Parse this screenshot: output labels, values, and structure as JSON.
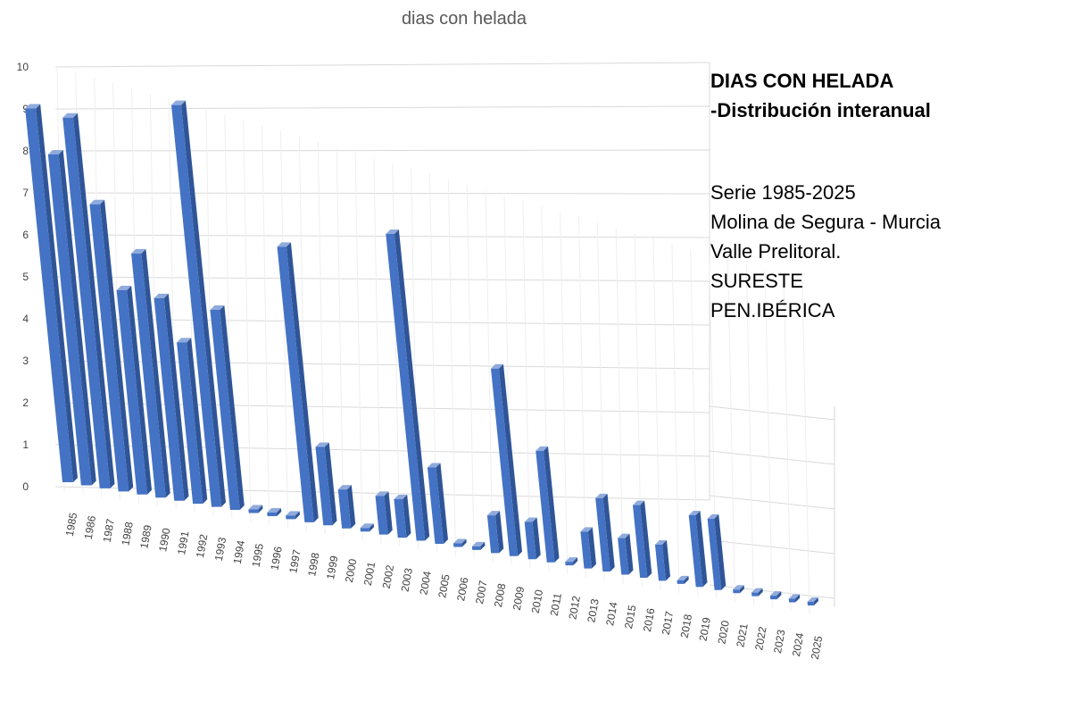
{
  "chart_data": {
    "type": "bar",
    "title": "dias con helada",
    "xlabel": "",
    "ylabel": "",
    "ylim": [
      0,
      10
    ],
    "yticks": [
      "0",
      "1",
      "2",
      "3",
      "4",
      "5",
      "6",
      "7",
      "8",
      "9",
      "10"
    ],
    "grid": true,
    "legend": "none",
    "style": "3d-perspective",
    "bar_color": "#4472C4",
    "categories": [
      "1985",
      "1986",
      "1987",
      "1988",
      "1989",
      "1990",
      "1991",
      "1992",
      "1993",
      "1994",
      "1995",
      "1996",
      "1997",
      "1998",
      "1999",
      "2000",
      "2001",
      "2002",
      "2003",
      "2004",
      "2005",
      "2006",
      "2007",
      "2008",
      "2009",
      "2010",
      "2011",
      "2012",
      "2013",
      "2014",
      "2015",
      "2016",
      "2017",
      "2018",
      "2019",
      "2020",
      "2021",
      "2022",
      "2023",
      "2024",
      "2025"
    ],
    "values": [
      9,
      8,
      9,
      7,
      5,
      6,
      5,
      4,
      10,
      5,
      0,
      0,
      0,
      7,
      2,
      1,
      0,
      1,
      1,
      8,
      2,
      0,
      0,
      1,
      5,
      1,
      3,
      0,
      1,
      2,
      1,
      2,
      1,
      0,
      2,
      2,
      0,
      0,
      0,
      0,
      0
    ],
    "annotations": {
      "heading": [
        "DIAS CON HELADA",
        "-Distribución interanual"
      ],
      "body": [
        "Serie 1985-2025",
        "Molina de Segura - Murcia",
        "Valle Prelitoral.",
        "SURESTE",
        "PEN.IBÉRICA"
      ]
    }
  }
}
